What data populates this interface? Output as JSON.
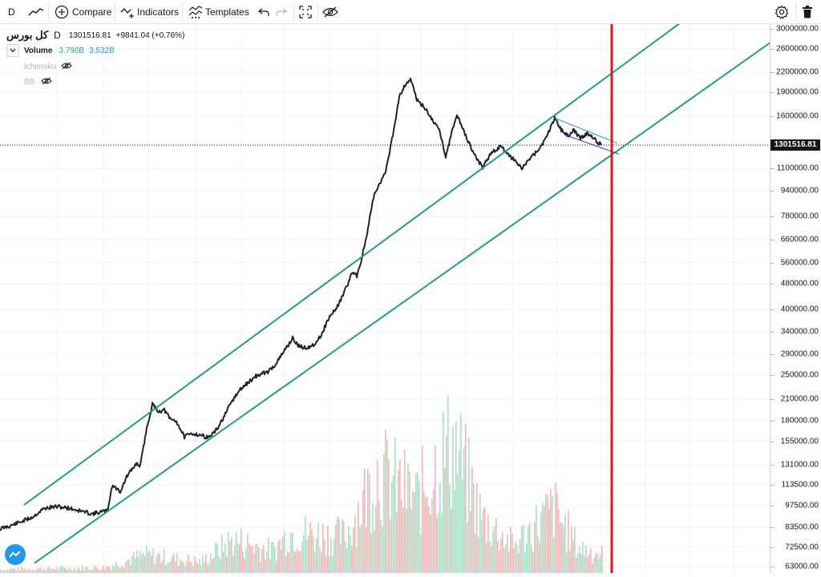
{
  "toolbar": {
    "interval": "D",
    "compare_label": "Compare",
    "indicators_label": "Indicators",
    "templates_label": "Templates",
    "icons": [
      "line-chart-icon",
      "plus-circle-icon",
      "indicators-icon",
      "templates-icon",
      "undo-icon",
      "redo-icon",
      "fullscreen-icon",
      "eye-off-icon",
      "gear-icon",
      "trash-icon"
    ]
  },
  "legend": {
    "symbol": "کل بورس",
    "interval": "D",
    "last": "1301516.81",
    "change": "+9841.04 (+0.76%)",
    "volume_label": "Volume",
    "volume_value_1": "3.796B",
    "volume_value_2": "3.532B",
    "ichimoku_label": "Ichimoku",
    "bb_label": "BB"
  },
  "colors": {
    "price_line": "#1e222d",
    "channel": "#1aa37a",
    "marker": "#e5161b",
    "triangle_upper": "#26a69a",
    "triangle_lower": "#3f3fc8",
    "volume_up": "#a8e0c8",
    "volume_down": "#f4b6b6"
  },
  "chart_data": {
    "type": "line",
    "scale": "log",
    "series": [
      {
        "points": [
          [
            0,
            82700
          ],
          [
            12,
            84300
          ],
          [
            25,
            86700
          ],
          [
            40,
            89800
          ],
          [
            55,
            95600
          ],
          [
            70,
            97000
          ],
          [
            85,
            96000
          ],
          [
            100,
            94000
          ],
          [
            115,
            92000
          ],
          [
            128,
            93500
          ],
          [
            134,
            94000
          ],
          [
            140,
            113000
          ],
          [
            150,
            108000
          ],
          [
            158,
            120000
          ],
          [
            170,
            132000
          ],
          [
            175,
            130000
          ],
          [
            183,
            170000
          ],
          [
            190,
            202000
          ],
          [
            198,
            192000
          ],
          [
            205,
            194000
          ],
          [
            212,
            182000
          ],
          [
            220,
            179000
          ],
          [
            230,
            160000
          ],
          [
            240,
            164000
          ],
          [
            250,
            162000
          ],
          [
            260,
            159000
          ],
          [
            270,
            168000
          ],
          [
            280,
            186000
          ],
          [
            290,
            208000
          ],
          [
            300,
            225000
          ],
          [
            310,
            237000
          ],
          [
            320,
            248000
          ],
          [
            335,
            256000
          ],
          [
            345,
            272000
          ],
          [
            355,
            298000
          ],
          [
            365,
            325000
          ],
          [
            372,
            308000
          ],
          [
            380,
            303000
          ],
          [
            390,
            308000
          ],
          [
            400,
            330000
          ],
          [
            410,
            375000
          ],
          [
            420,
            405000
          ],
          [
            430,
            455000
          ],
          [
            440,
            525000
          ],
          [
            445,
            510000
          ],
          [
            450,
            560000
          ],
          [
            458,
            690000
          ],
          [
            466,
            900000
          ],
          [
            475,
            1000000
          ],
          [
            482,
            1100000
          ],
          [
            490,
            1400000
          ],
          [
            498,
            1850000
          ],
          [
            505,
            2000000
          ],
          [
            512,
            2100000
          ],
          [
            520,
            1800000
          ],
          [
            530,
            1700000
          ],
          [
            540,
            1550000
          ],
          [
            548,
            1450000
          ],
          [
            556,
            1200000
          ],
          [
            562,
            1380000
          ],
          [
            570,
            1620000
          ],
          [
            578,
            1450000
          ],
          [
            586,
            1300000
          ],
          [
            595,
            1180000
          ],
          [
            602,
            1110000
          ],
          [
            610,
            1200000
          ],
          [
            618,
            1260000
          ],
          [
            625,
            1290000
          ],
          [
            632,
            1220000
          ],
          [
            640,
            1180000
          ],
          [
            650,
            1100000
          ],
          [
            660,
            1170000
          ],
          [
            670,
            1250000
          ],
          [
            680,
            1350000
          ],
          [
            692,
            1590000
          ],
          [
            700,
            1450000
          ],
          [
            708,
            1390000
          ],
          [
            716,
            1450000
          ],
          [
            724,
            1360000
          ],
          [
            732,
            1420000
          ],
          [
            740,
            1370000
          ],
          [
            750,
            1300000
          ]
        ]
      }
    ],
    "trendlines": [
      {
        "name": "channel-upper",
        "from": [
          30,
          98100
        ],
        "to": [
          850,
          3150000
        ]
      },
      {
        "name": "channel-lower",
        "from": [
          43,
          64600
        ],
        "to": [
          985,
          3000000
        ]
      },
      {
        "name": "triangle-upper",
        "from": [
          692,
          1580000
        ],
        "to": [
          770,
          1320000
        ]
      },
      {
        "name": "triangle-lower",
        "from": [
          705,
          1400000
        ],
        "to": [
          772,
          1220000
        ]
      }
    ],
    "marker_x": 763,
    "last_price": 1301516.81,
    "xlim": [
      0,
      960
    ],
    "ylim": [
      63000,
      3000000
    ],
    "y_ticks": [
      "3000000.00",
      "2600000.00",
      "2200000.00",
      "1900000.00",
      "1600000.00",
      "1300000.00",
      "1100000.00",
      "940000.00",
      "780000.00",
      "660000.00",
      "560000.00",
      "480000.00",
      "400000.00",
      "340000.00",
      "290000.00",
      "250000.00",
      "210000.00",
      "180000.00",
      "155000.00",
      "131000.00",
      "113500.00",
      "97500.00",
      "83500.00",
      "72500.00",
      "63000.00"
    ],
    "volume": {
      "start_x": 0,
      "end_x": 750,
      "max_height": 0.24,
      "profile": [
        [
          0,
          0.02
        ],
        [
          130,
          0.03
        ],
        [
          180,
          0.1
        ],
        [
          250,
          0.06
        ],
        [
          290,
          0.18
        ],
        [
          340,
          0.12
        ],
        [
          360,
          0.22
        ],
        [
          430,
          0.2
        ],
        [
          470,
          0.55
        ],
        [
          520,
          0.4
        ],
        [
          545,
          0.6
        ],
        [
          565,
          0.7
        ],
        [
          600,
          0.3
        ],
        [
          640,
          0.15
        ],
        [
          690,
          0.35
        ],
        [
          720,
          0.14
        ],
        [
          750,
          0.1
        ]
      ]
    }
  }
}
